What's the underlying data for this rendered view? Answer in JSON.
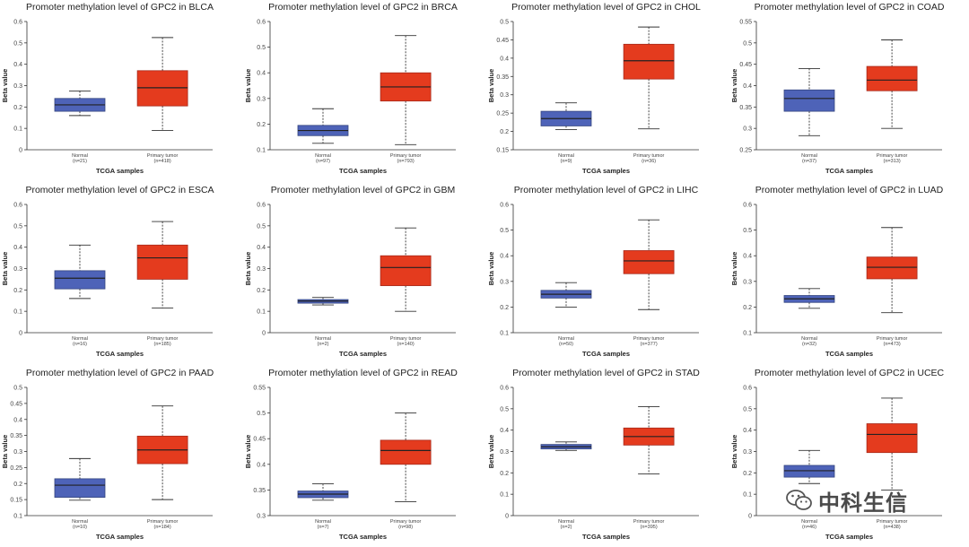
{
  "colors": {
    "normal": "#4E63B8",
    "normal_edge": "#34457F",
    "tumor": "#E43B1E",
    "tumor_edge": "#A6291A"
  },
  "watermark": {
    "icon": "wechat-icon",
    "text": "中科生信"
  },
  "chart_data": [
    {
      "type": "box",
      "title": "Promoter methylation level of GPC2 in BLCA",
      "xlabel": "TCGA samples",
      "ylabel": "Beta value",
      "ylim": [
        0,
        0.6
      ],
      "yticks": [
        "0",
        "0.1",
        "0.2",
        "0.3",
        "0.4",
        "0.5",
        "0.6"
      ],
      "groups": [
        {
          "name": "Normal",
          "n": "(n=21)",
          "min": 0.16,
          "q1": 0.18,
          "median": 0.21,
          "q3": 0.24,
          "max": 0.275
        },
        {
          "name": "Primary tumor",
          "n": "(n=418)",
          "min": 0.09,
          "q1": 0.205,
          "median": 0.29,
          "q3": 0.37,
          "max": 0.525
        }
      ]
    },
    {
      "type": "box",
      "title": "Promoter methylation level of GPC2 in BRCA",
      "xlabel": "TCGA samples",
      "ylabel": "Beta value",
      "ylim": [
        0.1,
        0.6
      ],
      "yticks": [
        "0.1",
        "0.2",
        "0.3",
        "0.4",
        "0.5",
        "0.6"
      ],
      "groups": [
        {
          "name": "Normal",
          "n": "(n=97)",
          "min": 0.125,
          "q1": 0.155,
          "median": 0.175,
          "q3": 0.195,
          "max": 0.26
        },
        {
          "name": "Primary tumor",
          "n": "(n=793)",
          "min": 0.12,
          "q1": 0.29,
          "median": 0.345,
          "q3": 0.4,
          "max": 0.545
        }
      ]
    },
    {
      "type": "box",
      "title": "Promoter methylation level of GPC2 in CHOL",
      "xlabel": "TCGA samples",
      "ylabel": "Beta value",
      "ylim": [
        0.15,
        0.5
      ],
      "yticks": [
        "0.15",
        "0.2",
        "0.25",
        "0.3",
        "0.35",
        "0.4",
        "0.45",
        "0.5"
      ],
      "groups": [
        {
          "name": "Normal",
          "n": "(n=9)",
          "min": 0.205,
          "q1": 0.215,
          "median": 0.235,
          "q3": 0.255,
          "max": 0.278
        },
        {
          "name": "Primary tumor",
          "n": "(n=36)",
          "min": 0.207,
          "q1": 0.343,
          "median": 0.393,
          "q3": 0.438,
          "max": 0.485
        }
      ]
    },
    {
      "type": "box",
      "title": "Promoter methylation level of GPC2 in COAD",
      "xlabel": "TCGA samples",
      "ylabel": "Beta value",
      "ylim": [
        0.25,
        0.55
      ],
      "yticks": [
        "0.25",
        "0.3",
        "0.35",
        "0.4",
        "0.45",
        "0.5",
        "0.55"
      ],
      "groups": [
        {
          "name": "Normal",
          "n": "(n=37)",
          "min": 0.283,
          "q1": 0.34,
          "median": 0.37,
          "q3": 0.39,
          "max": 0.44
        },
        {
          "name": "Primary tumor",
          "n": "(n=313)",
          "min": 0.3,
          "q1": 0.388,
          "median": 0.413,
          "q3": 0.445,
          "max": 0.507
        }
      ]
    },
    {
      "type": "box",
      "title": "Promoter methylation level of GPC2 in ESCA",
      "xlabel": "TCGA samples",
      "ylabel": "Beta value",
      "ylim": [
        0,
        0.6
      ],
      "yticks": [
        "0",
        "0.1",
        "0.2",
        "0.3",
        "0.4",
        "0.5",
        "0.6"
      ],
      "groups": [
        {
          "name": "Normal",
          "n": "(n=16)",
          "min": 0.16,
          "q1": 0.205,
          "median": 0.255,
          "q3": 0.29,
          "max": 0.41
        },
        {
          "name": "Primary tumor",
          "n": "(n=185)",
          "min": 0.115,
          "q1": 0.25,
          "median": 0.35,
          "q3": 0.41,
          "max": 0.52
        }
      ]
    },
    {
      "type": "box",
      "title": "Promoter methylation level of GPC2 in GBM",
      "xlabel": "TCGA samples",
      "ylabel": "Beta value",
      "ylim": [
        0,
        0.6
      ],
      "yticks": [
        "0",
        "0.1",
        "0.2",
        "0.3",
        "0.4",
        "0.5",
        "0.6"
      ],
      "groups": [
        {
          "name": "Normal",
          "n": "(n=2)",
          "min": 0.13,
          "q1": 0.138,
          "median": 0.148,
          "q3": 0.155,
          "max": 0.165
        },
        {
          "name": "Primary tumor",
          "n": "(n=140)",
          "min": 0.1,
          "q1": 0.22,
          "median": 0.305,
          "q3": 0.36,
          "max": 0.49
        }
      ]
    },
    {
      "type": "box",
      "title": "Promoter methylation level of GPC2 in LIHC",
      "xlabel": "TCGA samples",
      "ylabel": "Beta value",
      "ylim": [
        0.1,
        0.6
      ],
      "yticks": [
        "0.1",
        "0.2",
        "0.3",
        "0.4",
        "0.5",
        "0.6"
      ],
      "groups": [
        {
          "name": "Normal",
          "n": "(n=50)",
          "min": 0.2,
          "q1": 0.235,
          "median": 0.25,
          "q3": 0.265,
          "max": 0.295
        },
        {
          "name": "Primary tumor",
          "n": "(n=377)",
          "min": 0.19,
          "q1": 0.33,
          "median": 0.38,
          "q3": 0.42,
          "max": 0.54
        }
      ]
    },
    {
      "type": "box",
      "title": "Promoter methylation level of GPC2 in LUAD",
      "xlabel": "TCGA samples",
      "ylabel": "Beta value",
      "ylim": [
        0.1,
        0.6
      ],
      "yticks": [
        "0.1",
        "0.2",
        "0.3",
        "0.4",
        "0.5",
        "0.6"
      ],
      "groups": [
        {
          "name": "Normal",
          "n": "(n=32)",
          "min": 0.195,
          "q1": 0.218,
          "median": 0.232,
          "q3": 0.245,
          "max": 0.272
        },
        {
          "name": "Primary tumor",
          "n": "(n=473)",
          "min": 0.178,
          "q1": 0.31,
          "median": 0.355,
          "q3": 0.395,
          "max": 0.51
        }
      ]
    },
    {
      "type": "box",
      "title": "Promoter methylation level of GPC2 in PAAD",
      "xlabel": "TCGA samples",
      "ylabel": "Beta value",
      "ylim": [
        0.1,
        0.5
      ],
      "yticks": [
        "0.1",
        "0.15",
        "0.2",
        "0.25",
        "0.3",
        "0.35",
        "0.4",
        "0.45",
        "0.5"
      ],
      "groups": [
        {
          "name": "Normal",
          "n": "(n=10)",
          "min": 0.148,
          "q1": 0.157,
          "median": 0.195,
          "q3": 0.215,
          "max": 0.278
        },
        {
          "name": "Primary tumor",
          "n": "(n=184)",
          "min": 0.15,
          "q1": 0.262,
          "median": 0.305,
          "q3": 0.348,
          "max": 0.442
        }
      ]
    },
    {
      "type": "box",
      "title": "Promoter methylation level of GPC2 in READ",
      "xlabel": "TCGA samples",
      "ylabel": "Beta value",
      "ylim": [
        0.3,
        0.55
      ],
      "yticks": [
        "0.3",
        "0.35",
        "0.4",
        "0.45",
        "0.5",
        "0.55"
      ],
      "groups": [
        {
          "name": "Normal",
          "n": "(n=7)",
          "min": 0.33,
          "q1": 0.335,
          "median": 0.342,
          "q3": 0.348,
          "max": 0.362
        },
        {
          "name": "Primary tumor",
          "n": "(n=98)",
          "min": 0.327,
          "q1": 0.4,
          "median": 0.427,
          "q3": 0.447,
          "max": 0.5
        }
      ]
    },
    {
      "type": "box",
      "title": "Promoter methylation level of GPC2 in STAD",
      "xlabel": "TCGA samples",
      "ylabel": "Beta value",
      "ylim": [
        0,
        0.6
      ],
      "yticks": [
        "0",
        "0.1",
        "0.2",
        "0.3",
        "0.4",
        "0.5",
        "0.6"
      ],
      "groups": [
        {
          "name": "Normal",
          "n": "(n=2)",
          "min": 0.305,
          "q1": 0.312,
          "median": 0.322,
          "q3": 0.333,
          "max": 0.345
        },
        {
          "name": "Primary tumor",
          "n": "(n=395)",
          "min": 0.195,
          "q1": 0.33,
          "median": 0.37,
          "q3": 0.41,
          "max": 0.51
        }
      ]
    },
    {
      "type": "box",
      "title": "Promoter methylation level of GPC2 in UCEC",
      "xlabel": "TCGA samples",
      "ylabel": "Beta value",
      "ylim": [
        0,
        0.6
      ],
      "yticks": [
        "0",
        "0.1",
        "0.2",
        "0.3",
        "0.4",
        "0.5",
        "0.6"
      ],
      "groups": [
        {
          "name": "Normal",
          "n": "(n=46)",
          "min": 0.15,
          "q1": 0.18,
          "median": 0.21,
          "q3": 0.235,
          "max": 0.305
        },
        {
          "name": "Primary tumor",
          "n": "(n=438)",
          "min": 0.12,
          "q1": 0.295,
          "median": 0.38,
          "q3": 0.43,
          "max": 0.55
        }
      ]
    }
  ]
}
